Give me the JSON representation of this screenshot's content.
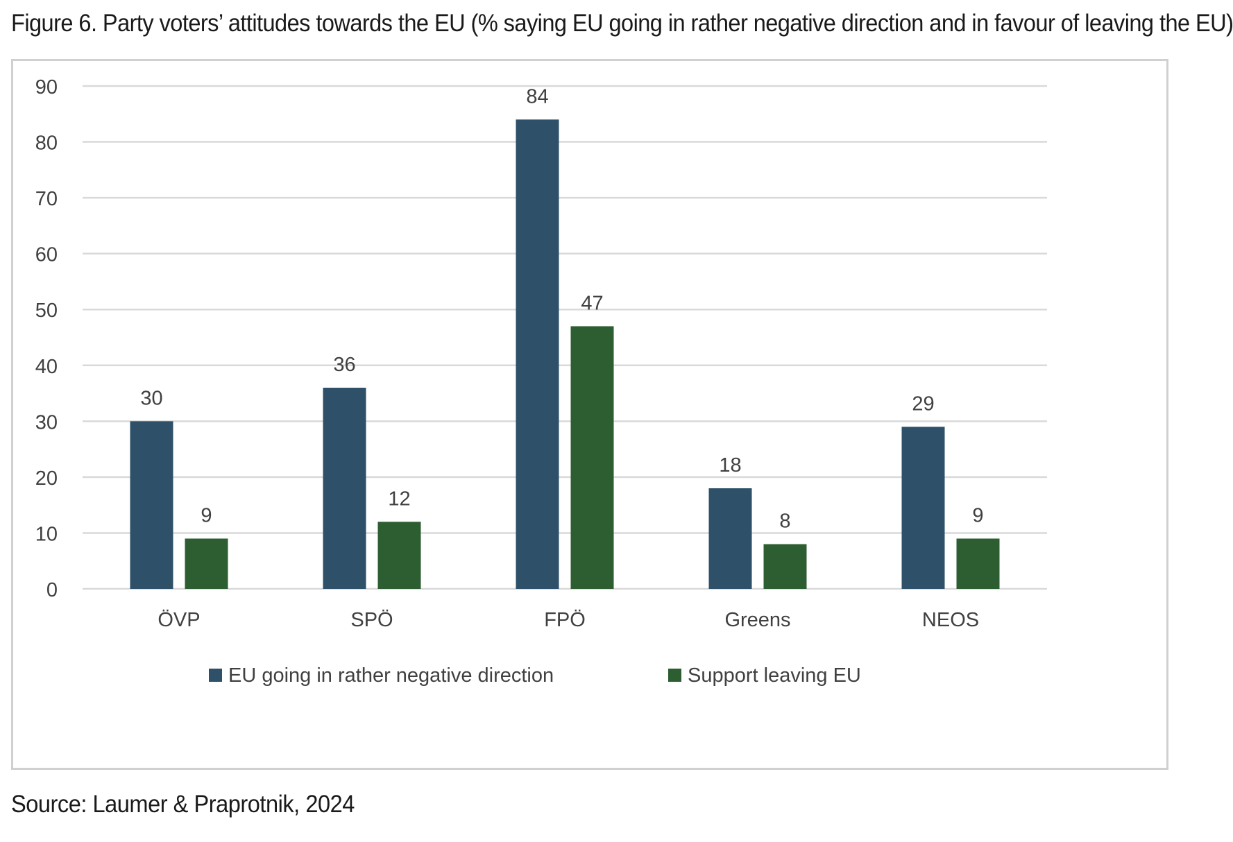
{
  "figure": {
    "title": "Figure 6. Party voters’ attitudes towards the EU (% saying EU going in rather negative direction and in favour of leaving the EU)",
    "source": "Source: Laumer & Praprotnik, 2024"
  },
  "colors": {
    "series_negative": "#2e5068",
    "series_leave": "#2d5e32",
    "grid": "#d9d9d9",
    "text": "#404040"
  },
  "chart_data": {
    "type": "bar",
    "categories": [
      "ÖVP",
      "SPÖ",
      "FPÖ",
      "Greens",
      "NEOS"
    ],
    "series": [
      {
        "name": "EU going in rather negative direction",
        "values": [
          30,
          36,
          84,
          18,
          29
        ]
      },
      {
        "name": "Support leaving EU",
        "values": [
          9,
          12,
          47,
          8,
          9
        ]
      }
    ],
    "ylim": [
      0,
      90
    ],
    "yticks": [
      0,
      10,
      20,
      30,
      40,
      50,
      60,
      70,
      80,
      90
    ],
    "grid": true,
    "legend": "bottom",
    "data_labels": true
  }
}
